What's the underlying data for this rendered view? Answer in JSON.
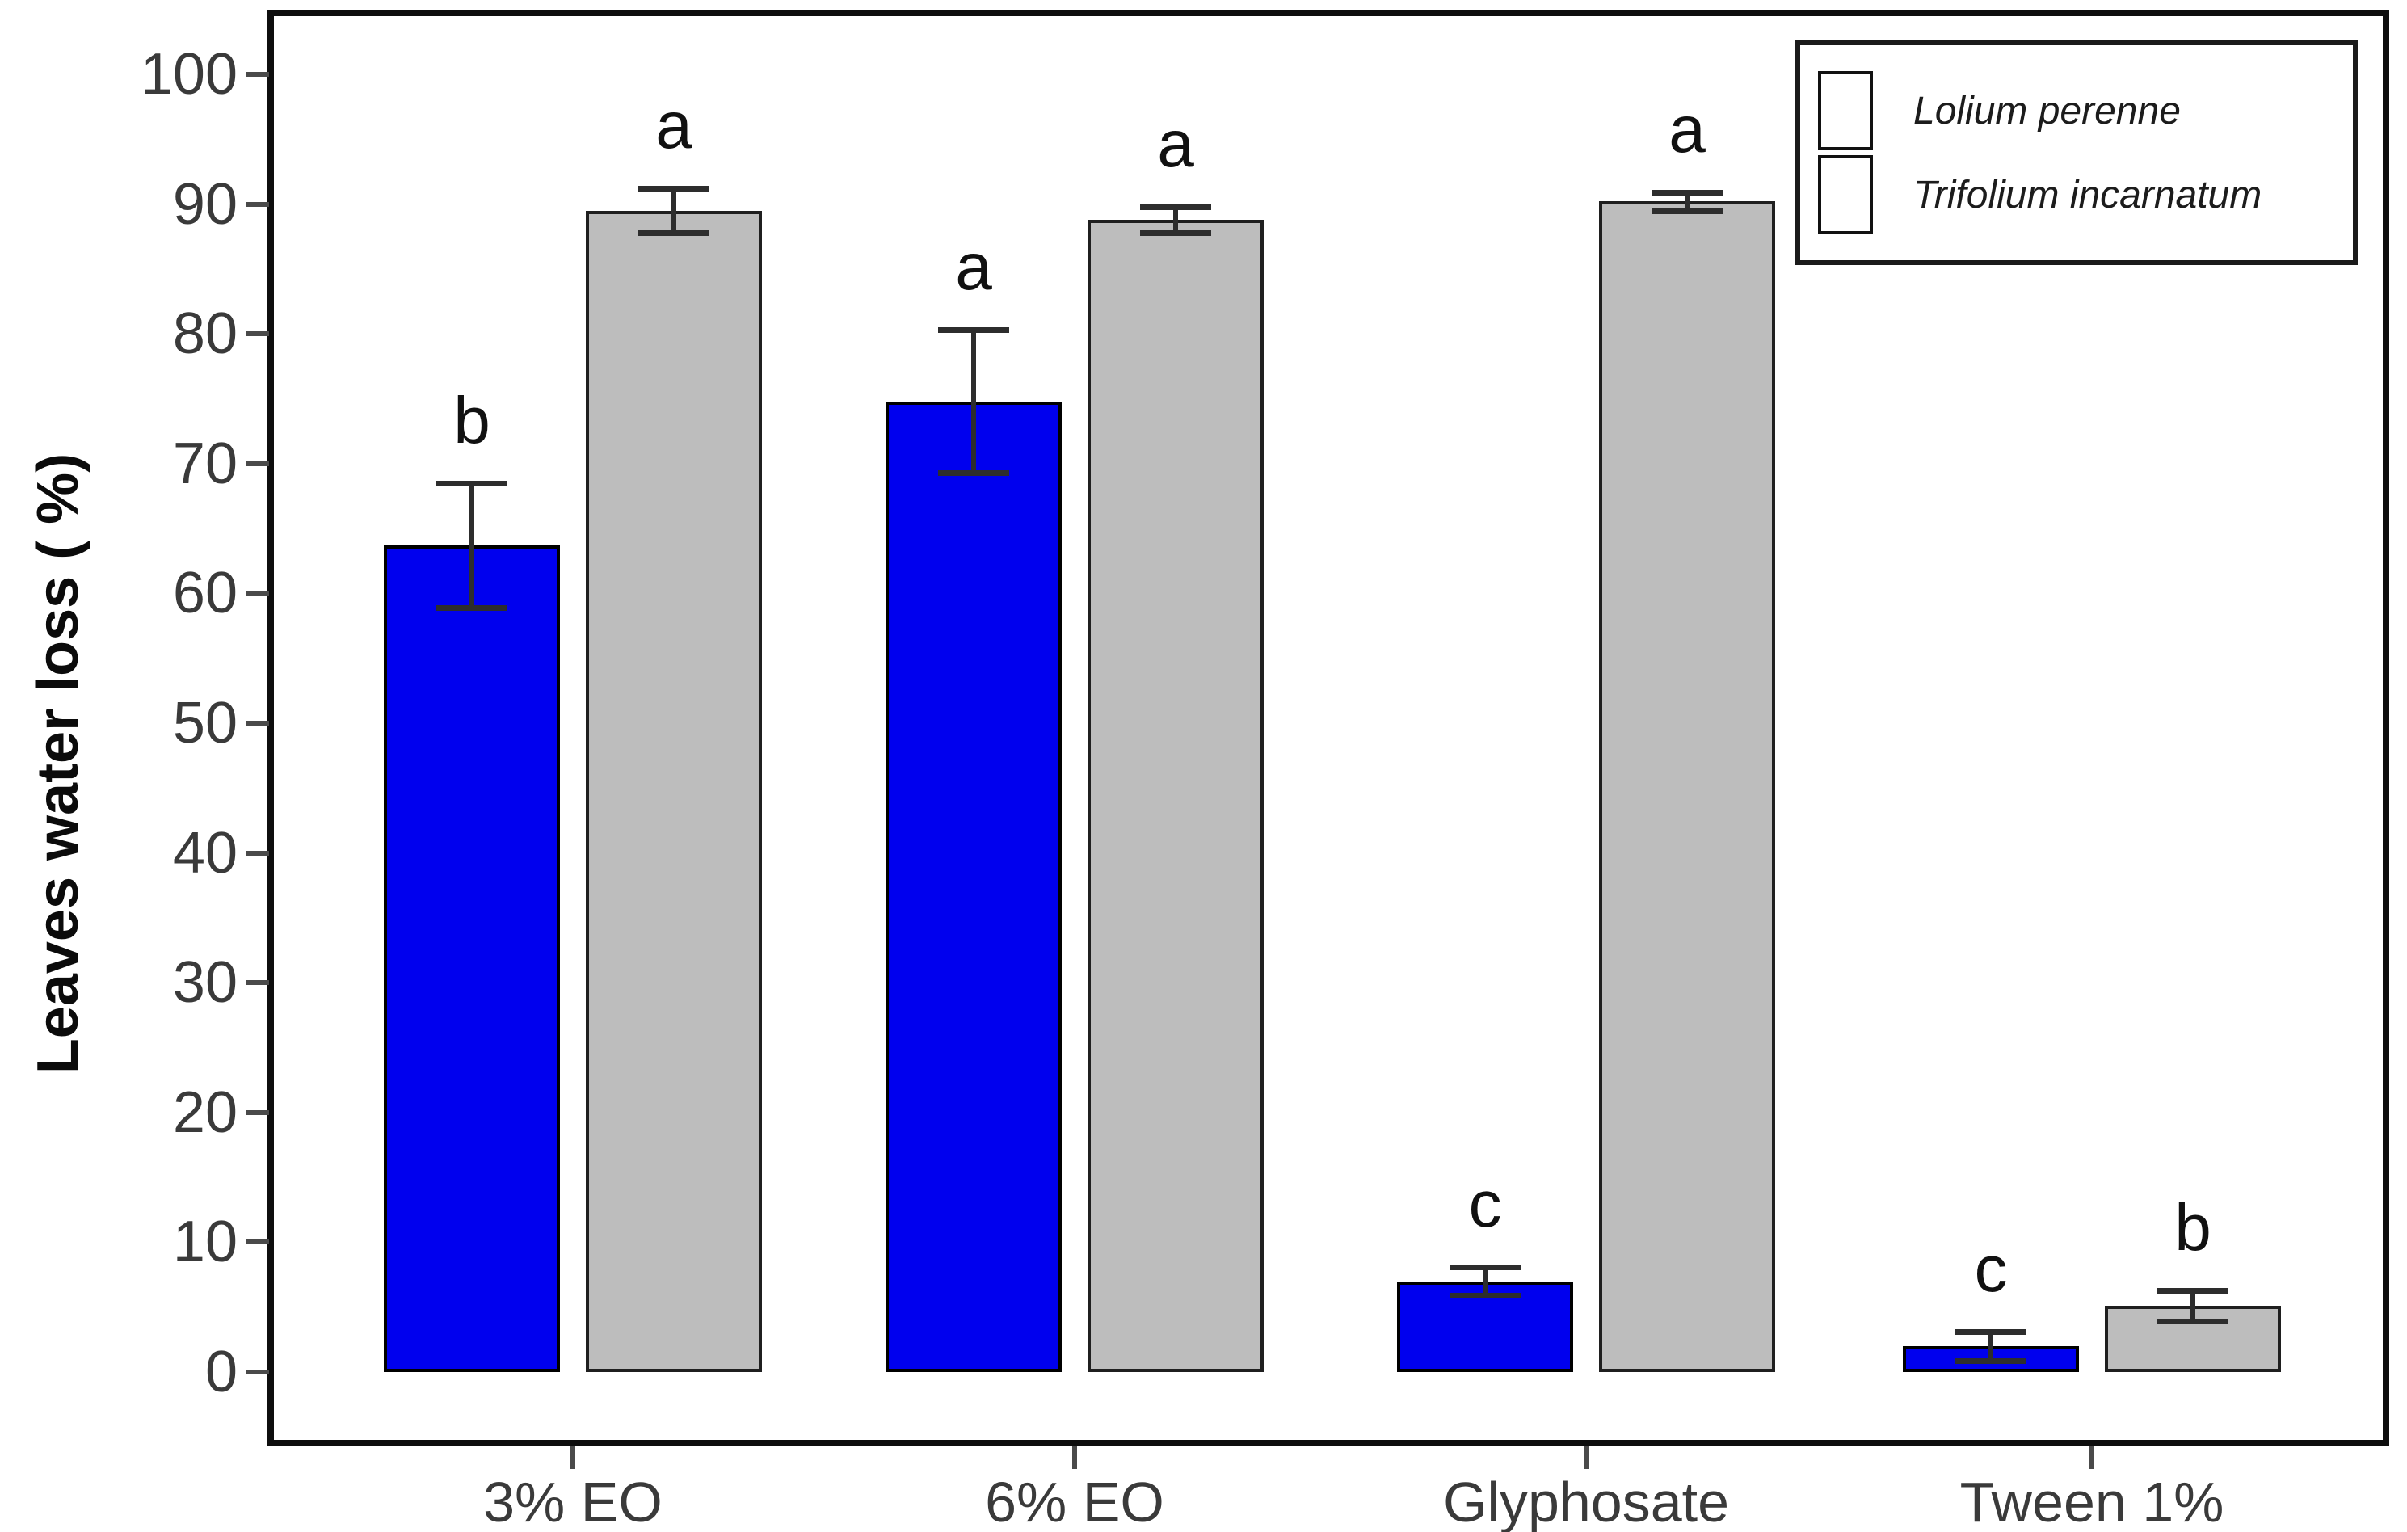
{
  "chart_data": {
    "type": "bar",
    "title": "",
    "xlabel": "",
    "ylabel": "Leaves water loss ( %)",
    "categories": [
      "3% EO",
      "6% EO",
      "Glyphosate",
      "Tween 1%"
    ],
    "ylim": [
      0,
      100
    ],
    "yticks": [
      0,
      10,
      20,
      30,
      40,
      50,
      60,
      70,
      80,
      90,
      100
    ],
    "grid": false,
    "legend_position": "top-right",
    "error_bars": true,
    "series": [
      {
        "name": "Lolium perenne",
        "color": "#0000EE",
        "border_color": "#000000",
        "values": [
          63.7,
          74.8,
          7.0,
          2.0
        ],
        "errors": [
          4.8,
          5.5,
          1.1,
          1.1
        ],
        "letters": [
          "b",
          "a",
          "c",
          "c"
        ]
      },
      {
        "name": "Trifolium incarnatum",
        "color": "#BDBDBD",
        "border_color": "#1f1f1f",
        "values": [
          89.5,
          88.8,
          90.2,
          5.1
        ],
        "errors": [
          1.7,
          1.0,
          0.7,
          1.2
        ],
        "letters": [
          "a",
          "a",
          "a",
          "b"
        ]
      }
    ]
  }
}
